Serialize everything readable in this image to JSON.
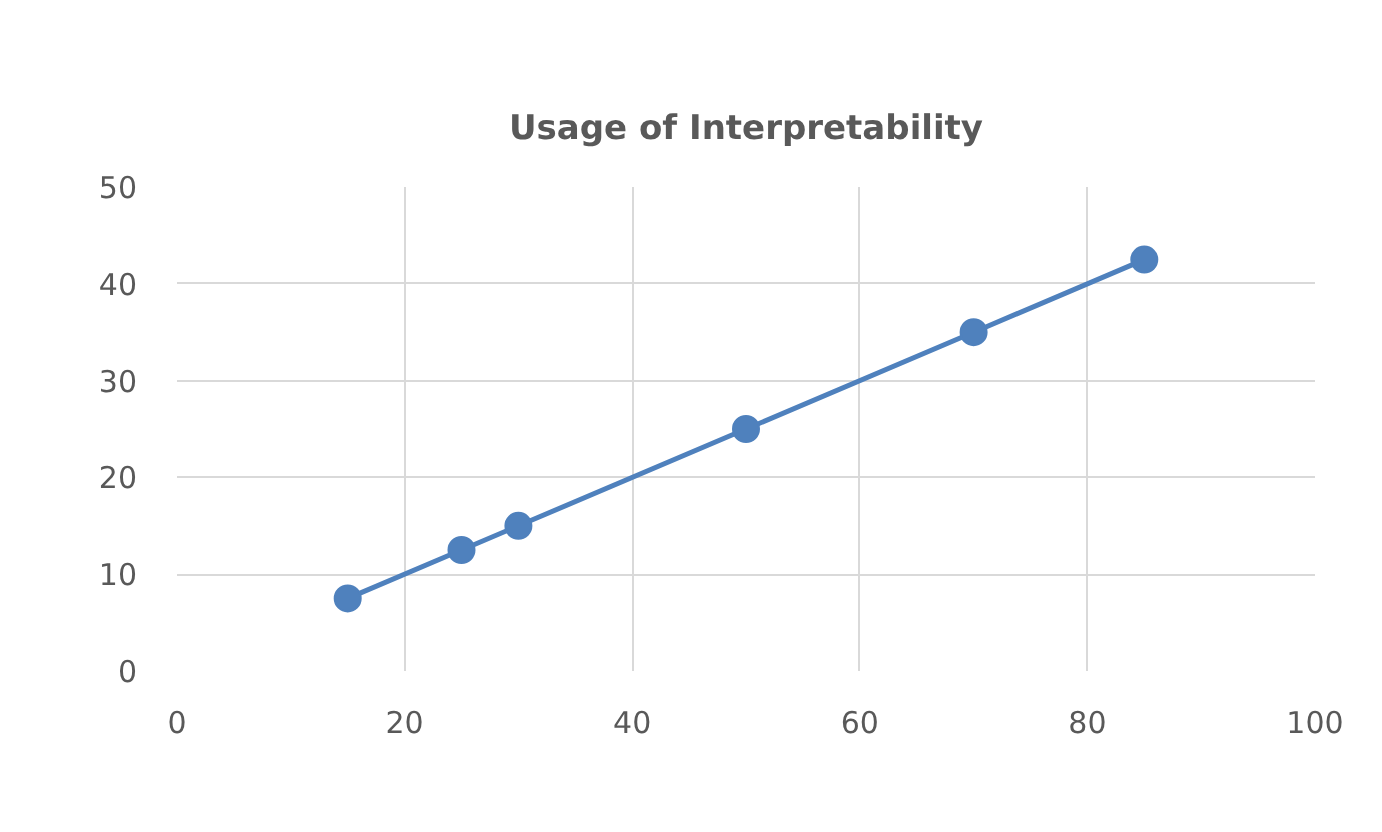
{
  "chart_data": {
    "type": "line",
    "title": "Usage of Interpretability",
    "x": [
      15,
      25,
      30,
      50,
      70,
      85
    ],
    "series": [
      {
        "color": "#4f81bd",
        "values": [
          7.5,
          12.5,
          15,
          25,
          35,
          42.5
        ]
      }
    ],
    "xlim": [
      0,
      100
    ],
    "xticks": [
      0,
      20,
      40,
      60,
      80,
      100
    ],
    "ylim": [
      0,
      50
    ],
    "yticks": [
      0,
      10,
      20,
      30,
      40,
      50
    ],
    "grid": true,
    "marker": "circle",
    "line_style": "solid"
  }
}
